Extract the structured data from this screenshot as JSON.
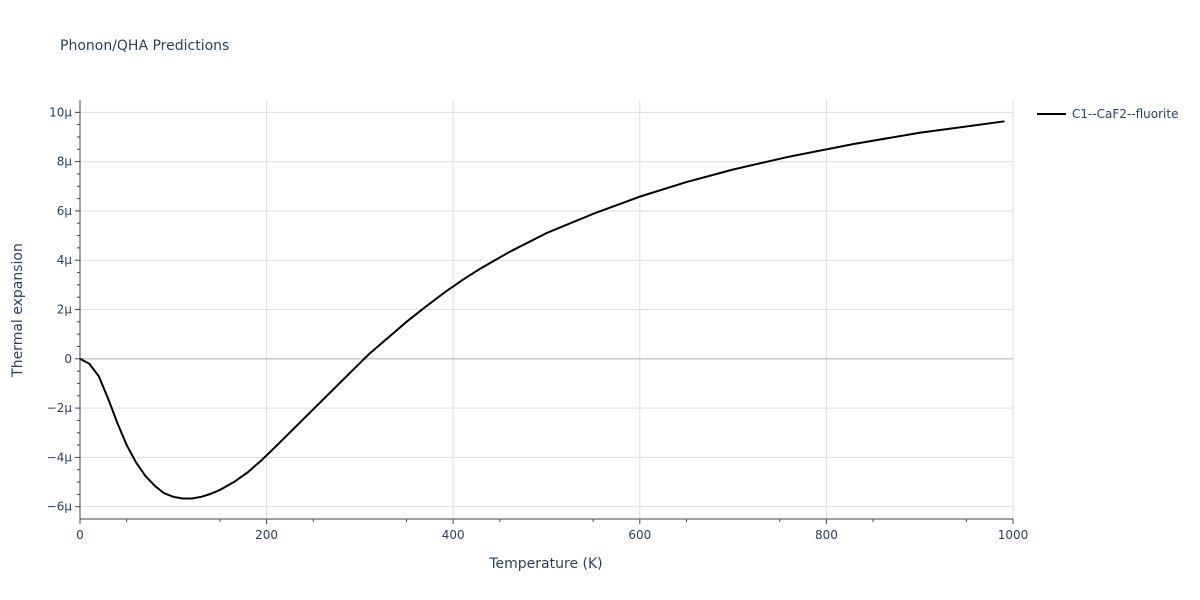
{
  "chart_data": {
    "type": "line",
    "title": "Phonon/QHA Predictions",
    "xlabel": "Temperature (K)",
    "ylabel": "Thermal expansion",
    "xlim": [
      0,
      1000
    ],
    "ylim": [
      -6.5,
      10.5
    ],
    "x_ticks": [
      0,
      200,
      400,
      600,
      800,
      1000
    ],
    "x_tick_labels": [
      "0",
      "200",
      "400",
      "600",
      "800",
      "1000"
    ],
    "y_ticks": [
      -6,
      -4,
      -2,
      0,
      2,
      4,
      6,
      8,
      10
    ],
    "y_tick_labels": [
      "−6μ",
      "−4μ",
      "−2μ",
      "0",
      "2μ",
      "4μ",
      "6μ",
      "8μ",
      "10μ"
    ],
    "y_unit_multiplier": "1e-6",
    "grid": true,
    "legend_position": "top-right",
    "colors": {
      "text": "#2a3f5f",
      "grid": "#dddddd",
      "axis": "#444444",
      "zero_line": "#c8c8c8"
    },
    "series": [
      {
        "name": "C1--CaF2--fluorite",
        "color": "#000000",
        "x": [
          0,
          10,
          20,
          30,
          40,
          50,
          60,
          70,
          80,
          90,
          100,
          110,
          120,
          130,
          140,
          150,
          165,
          180,
          195,
          210,
          230,
          250,
          270,
          290,
          310,
          330,
          350,
          370,
          390,
          410,
          430,
          460,
          500,
          550,
          600,
          650,
          700,
          760,
          830,
          900,
          990
        ],
        "y": [
          0,
          -0.2,
          -0.7,
          -1.6,
          -2.6,
          -3.5,
          -4.2,
          -4.75,
          -5.15,
          -5.45,
          -5.6,
          -5.67,
          -5.67,
          -5.6,
          -5.48,
          -5.32,
          -5.0,
          -4.6,
          -4.1,
          -3.55,
          -2.8,
          -2.05,
          -1.3,
          -0.55,
          0.2,
          0.85,
          1.5,
          2.1,
          2.67,
          3.2,
          3.68,
          4.33,
          5.1,
          5.88,
          6.58,
          7.17,
          7.68,
          8.2,
          8.72,
          9.17,
          9.63
        ]
      }
    ]
  }
}
